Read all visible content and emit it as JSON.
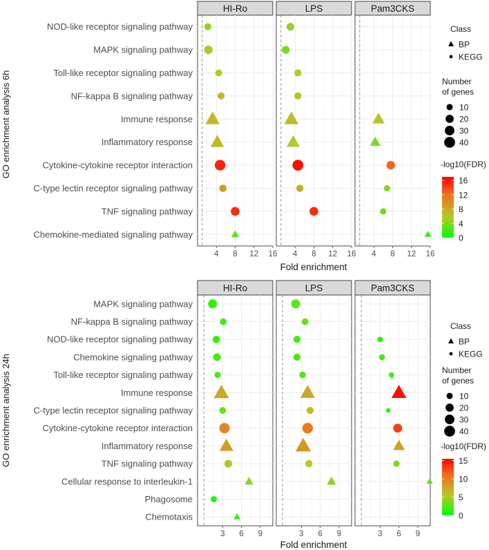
{
  "chart_data": [
    {
      "type": "scatter",
      "ylabel": "GO enrichment analysis 6h",
      "xlabel": "Fold enrichment",
      "panels": [
        "HI-Ro",
        "LPS",
        "Pam3CKS"
      ],
      "xlim": [
        0,
        16
      ],
      "xticks": [
        4,
        8,
        12,
        16
      ],
      "xtick_labels": [
        "4",
        "8",
        "12",
        "16"
      ],
      "reference_line_x": 1,
      "categories": [
        "NOD-like receptor signaling pathway",
        "MAPK signaling pathway",
        "Toll-like receptor signaling pathway",
        "NF-kappa B signaling pathway",
        "Immune response",
        "Inflammatory response",
        "Cytokine-cytokine receptor interaction",
        "C-type lectin receptor signaling pathway",
        "TNF signaling pathway",
        "Chemokine-mediated signaling pathway"
      ],
      "points": [
        {
          "panel": "HI-Ro",
          "category": "NOD-like receptor signaling pathway",
          "x": 2.2,
          "genes": 14,
          "fdr": 5,
          "class": "KEGG"
        },
        {
          "panel": "HI-Ro",
          "category": "MAPK signaling pathway",
          "x": 2.3,
          "genes": 22,
          "fdr": 5.5,
          "class": "KEGG"
        },
        {
          "panel": "HI-Ro",
          "category": "Toll-like receptor signaling pathway",
          "x": 4.5,
          "genes": 13,
          "fdr": 6,
          "class": "KEGG"
        },
        {
          "panel": "HI-Ro",
          "category": "NF-kappa B signaling pathway",
          "x": 5.0,
          "genes": 14,
          "fdr": 7,
          "class": "KEGG"
        },
        {
          "panel": "HI-Ro",
          "category": "Immune response",
          "x": 3.2,
          "genes": 36,
          "fdr": 7,
          "class": "BP"
        },
        {
          "panel": "HI-Ro",
          "category": "Inflammatory response",
          "x": 4.2,
          "genes": 32,
          "fdr": 7,
          "class": "BP"
        },
        {
          "panel": "HI-Ro",
          "category": "Cytokine-cytokine receptor interaction",
          "x": 4.8,
          "genes": 38,
          "fdr": 15.5,
          "class": "KEGG"
        },
        {
          "panel": "HI-Ro",
          "category": "C-type lectin receptor signaling pathway",
          "x": 5.4,
          "genes": 15,
          "fdr": 9,
          "class": "KEGG"
        },
        {
          "panel": "HI-Ro",
          "category": "TNF signaling pathway",
          "x": 8.0,
          "genes": 24,
          "fdr": 15,
          "class": "KEGG"
        },
        {
          "panel": "HI-Ro",
          "category": "Chemokine-mediated signaling pathway",
          "x": 8.0,
          "genes": 8,
          "fdr": 3,
          "class": "BP"
        },
        {
          "panel": "LPS",
          "category": "NOD-like receptor signaling pathway",
          "x": 3.0,
          "genes": 17,
          "fdr": 5,
          "class": "KEGG"
        },
        {
          "panel": "LPS",
          "category": "MAPK signaling pathway",
          "x": 2.0,
          "genes": 18,
          "fdr": 4,
          "class": "KEGG"
        },
        {
          "panel": "LPS",
          "category": "Toll-like receptor signaling pathway",
          "x": 4.6,
          "genes": 14,
          "fdr": 6,
          "class": "KEGG"
        },
        {
          "panel": "LPS",
          "category": "NF-kappa B signaling pathway",
          "x": 4.6,
          "genes": 14,
          "fdr": 6.5,
          "class": "KEGG"
        },
        {
          "panel": "LPS",
          "category": "Immune response",
          "x": 3.2,
          "genes": 36,
          "fdr": 6.5,
          "class": "BP"
        },
        {
          "panel": "LPS",
          "category": "Inflammatory response",
          "x": 3.6,
          "genes": 30,
          "fdr": 6,
          "class": "BP"
        },
        {
          "panel": "LPS",
          "category": "Cytokine-cytokine receptor interaction",
          "x": 4.6,
          "genes": 40,
          "fdr": 16.5,
          "class": "KEGG"
        },
        {
          "panel": "LPS",
          "category": "C-type lectin receptor signaling pathway",
          "x": 5.0,
          "genes": 14,
          "fdr": 8,
          "class": "KEGG"
        },
        {
          "panel": "LPS",
          "category": "TNF signaling pathway",
          "x": 8.0,
          "genes": 24,
          "fdr": 15,
          "class": "KEGG"
        },
        {
          "panel": "Pam3CKS",
          "category": "Immune response",
          "x": 5.0,
          "genes": 25,
          "fdr": 6,
          "class": "BP"
        },
        {
          "panel": "Pam3CKS",
          "category": "Inflammatory response",
          "x": 4.3,
          "genes": 17,
          "fdr": 4,
          "class": "BP"
        },
        {
          "panel": "Pam3CKS",
          "category": "Cytokine-cytokine receptor interaction",
          "x": 7.6,
          "genes": 23,
          "fdr": 12.5,
          "class": "KEGG"
        },
        {
          "panel": "Pam3CKS",
          "category": "C-type lectin receptor signaling pathway",
          "x": 6.8,
          "genes": 10,
          "fdr": 4,
          "class": "KEGG"
        },
        {
          "panel": "Pam3CKS",
          "category": "TNF signaling pathway",
          "x": 6.0,
          "genes": 10,
          "fdr": 3,
          "class": "KEGG"
        },
        {
          "panel": "Pam3CKS",
          "category": "Chemokine-mediated signaling pathway",
          "x": 15.5,
          "genes": 5,
          "fdr": 1.5,
          "class": "BP"
        }
      ],
      "legend": {
        "class_title": "Class",
        "class_items": [
          "BP",
          "KEGG"
        ],
        "size_title": [
          "Number",
          "of genes"
        ],
        "size_values": [
          10,
          20,
          30,
          40
        ],
        "color_title": "-log10(FDR)",
        "color_ticks": [
          0,
          4,
          8,
          12,
          16
        ],
        "color_range": [
          0,
          17
        ]
      }
    },
    {
      "type": "scatter",
      "ylabel": "GO enrichment analysis 24h",
      "xlabel": "Fold enrichment",
      "panels": [
        "HI-Ro",
        "LPS",
        "Pam3CKS"
      ],
      "xlim": [
        -1,
        11
      ],
      "xticks": [
        3,
        6,
        9
      ],
      "xtick_labels": [
        "3",
        "6",
        "9"
      ],
      "reference_line_x": 0,
      "categories": [
        "MAPK signaling pathway",
        "NF-kappa B signaling pathway",
        "NOD-like receptor signaling pathway",
        "Chemokine signaling pathway",
        "Toll-like receptor signaling pathway",
        "Immune response",
        "C-type lectin receptor signaling pathway",
        "Cytokine-cytokine receptor interaction",
        "Inflammatory response",
        "TNF signaling pathway",
        "Cellular response to interleukin-1",
        "Phagosome",
        "Chemotaxis"
      ],
      "points": [
        {
          "panel": "HI-Ro",
          "category": "MAPK signaling pathway",
          "x": 1.4,
          "genes": 26,
          "fdr": 1.5,
          "class": "KEGG"
        },
        {
          "panel": "HI-Ro",
          "category": "NF-kappa B signaling pathway",
          "x": 3.1,
          "genes": 12,
          "fdr": 2,
          "class": "KEGG"
        },
        {
          "panel": "HI-Ro",
          "category": "NOD-like receptor signaling pathway",
          "x": 2.0,
          "genes": 15,
          "fdr": 1.5,
          "class": "KEGG"
        },
        {
          "panel": "HI-Ro",
          "category": "Chemokine signaling pathway",
          "x": 2.1,
          "genes": 17,
          "fdr": 2,
          "class": "KEGG"
        },
        {
          "panel": "HI-Ro",
          "category": "Toll-like receptor signaling pathway",
          "x": 2.2,
          "genes": 10,
          "fdr": 2,
          "class": "KEGG"
        },
        {
          "panel": "HI-Ro",
          "category": "Immune response",
          "x": 2.8,
          "genes": 42,
          "fdr": 7.5,
          "class": "BP"
        },
        {
          "panel": "HI-Ro",
          "category": "C-type lectin receptor signaling pathway",
          "x": 3.0,
          "genes": 12,
          "fdr": 3,
          "class": "KEGG"
        },
        {
          "panel": "HI-Ro",
          "category": "Cytokine-cytokine receptor interaction",
          "x": 3.3,
          "genes": 36,
          "fdr": 9.5,
          "class": "KEGG"
        },
        {
          "panel": "HI-Ro",
          "category": "Inflammatory response",
          "x": 3.6,
          "genes": 34,
          "fdr": 8,
          "class": "BP"
        },
        {
          "panel": "HI-Ro",
          "category": "TNF signaling pathway",
          "x": 3.9,
          "genes": 17,
          "fdr": 5,
          "class": "KEGG"
        },
        {
          "panel": "HI-Ro",
          "category": "Cellular response to interleukin-1",
          "x": 7.2,
          "genes": 10,
          "fdr": 4,
          "class": "BP"
        },
        {
          "panel": "HI-Ro",
          "category": "Phagosome",
          "x": 1.6,
          "genes": 10,
          "fdr": 1,
          "class": "KEGG"
        },
        {
          "panel": "HI-Ro",
          "category": "Chemotaxis",
          "x": 5.3,
          "genes": 5,
          "fdr": 1.5,
          "class": "BP"
        },
        {
          "panel": "LPS",
          "category": "MAPK signaling pathway",
          "x": 2.1,
          "genes": 25,
          "fdr": 2.5,
          "class": "KEGG"
        },
        {
          "panel": "LPS",
          "category": "NF-kappa B signaling pathway",
          "x": 3.6,
          "genes": 12,
          "fdr": 3,
          "class": "KEGG"
        },
        {
          "panel": "LPS",
          "category": "NOD-like receptor signaling pathway",
          "x": 2.3,
          "genes": 14,
          "fdr": 2,
          "class": "KEGG"
        },
        {
          "panel": "LPS",
          "category": "Chemokine signaling pathway",
          "x": 2.3,
          "genes": 14,
          "fdr": 2,
          "class": "KEGG"
        },
        {
          "panel": "LPS",
          "category": "Toll-like receptor signaling pathway",
          "x": 3.2,
          "genes": 11,
          "fdr": 2.5,
          "class": "KEGG"
        },
        {
          "panel": "LPS",
          "category": "Immune response",
          "x": 4.0,
          "genes": 38,
          "fdr": 7.5,
          "class": "BP"
        },
        {
          "panel": "LPS",
          "category": "C-type lectin receptor signaling pathway",
          "x": 4.4,
          "genes": 14,
          "fdr": 6,
          "class": "KEGG"
        },
        {
          "panel": "LPS",
          "category": "Cytokine-cytokine receptor interaction",
          "x": 4.0,
          "genes": 38,
          "fdr": 10.5,
          "class": "KEGG"
        },
        {
          "panel": "LPS",
          "category": "Inflammatory response",
          "x": 3.3,
          "genes": 44,
          "fdr": 8.5,
          "class": "BP"
        },
        {
          "panel": "LPS",
          "category": "TNF signaling pathway",
          "x": 4.2,
          "genes": 15,
          "fdr": 5.5,
          "class": "KEGG"
        },
        {
          "panel": "LPS",
          "category": "Cellular response to interleukin-1",
          "x": 7.8,
          "genes": 12,
          "fdr": 4,
          "class": "BP"
        },
        {
          "panel": "Pam3CKS",
          "category": "NOD-like receptor signaling pathway",
          "x": 3.0,
          "genes": 7,
          "fdr": 1.5,
          "class": "KEGG"
        },
        {
          "panel": "Pam3CKS",
          "category": "Chemokine signaling pathway",
          "x": 3.3,
          "genes": 9,
          "fdr": 2,
          "class": "KEGG"
        },
        {
          "panel": "Pam3CKS",
          "category": "Toll-like receptor signaling pathway",
          "x": 4.8,
          "genes": 6,
          "fdr": 1.5,
          "class": "KEGG"
        },
        {
          "panel": "Pam3CKS",
          "category": "Immune response",
          "x": 6.0,
          "genes": 40,
          "fdr": 15,
          "class": "BP"
        },
        {
          "panel": "Pam3CKS",
          "category": "C-type lectin receptor signaling pathway",
          "x": 4.3,
          "genes": 4,
          "fdr": 1,
          "class": "KEGG"
        },
        {
          "panel": "Pam3CKS",
          "category": "Cytokine-cytokine receptor interaction",
          "x": 5.8,
          "genes": 25,
          "fdr": 13,
          "class": "KEGG"
        },
        {
          "panel": "Pam3CKS",
          "category": "Inflammatory response",
          "x": 6.0,
          "genes": 22,
          "fdr": 8,
          "class": "BP"
        },
        {
          "panel": "Pam3CKS",
          "category": "TNF signaling pathway",
          "x": 5.6,
          "genes": 11,
          "fdr": 4,
          "class": "KEGG"
        },
        {
          "panel": "Pam3CKS",
          "category": "Cellular response to interleukin-1",
          "x": 10.9,
          "genes": 4,
          "fdr": 3,
          "class": "BP"
        }
      ],
      "legend": {
        "class_title": "Class",
        "class_items": [
          "BP",
          "KEGG"
        ],
        "size_title": [
          "Number",
          "of genes"
        ],
        "size_values": [
          10,
          20,
          30,
          40
        ],
        "color_title": "-log10(FDR)",
        "color_ticks": [
          0,
          5,
          10,
          15
        ],
        "color_range": [
          0,
          15.5
        ]
      }
    }
  ]
}
